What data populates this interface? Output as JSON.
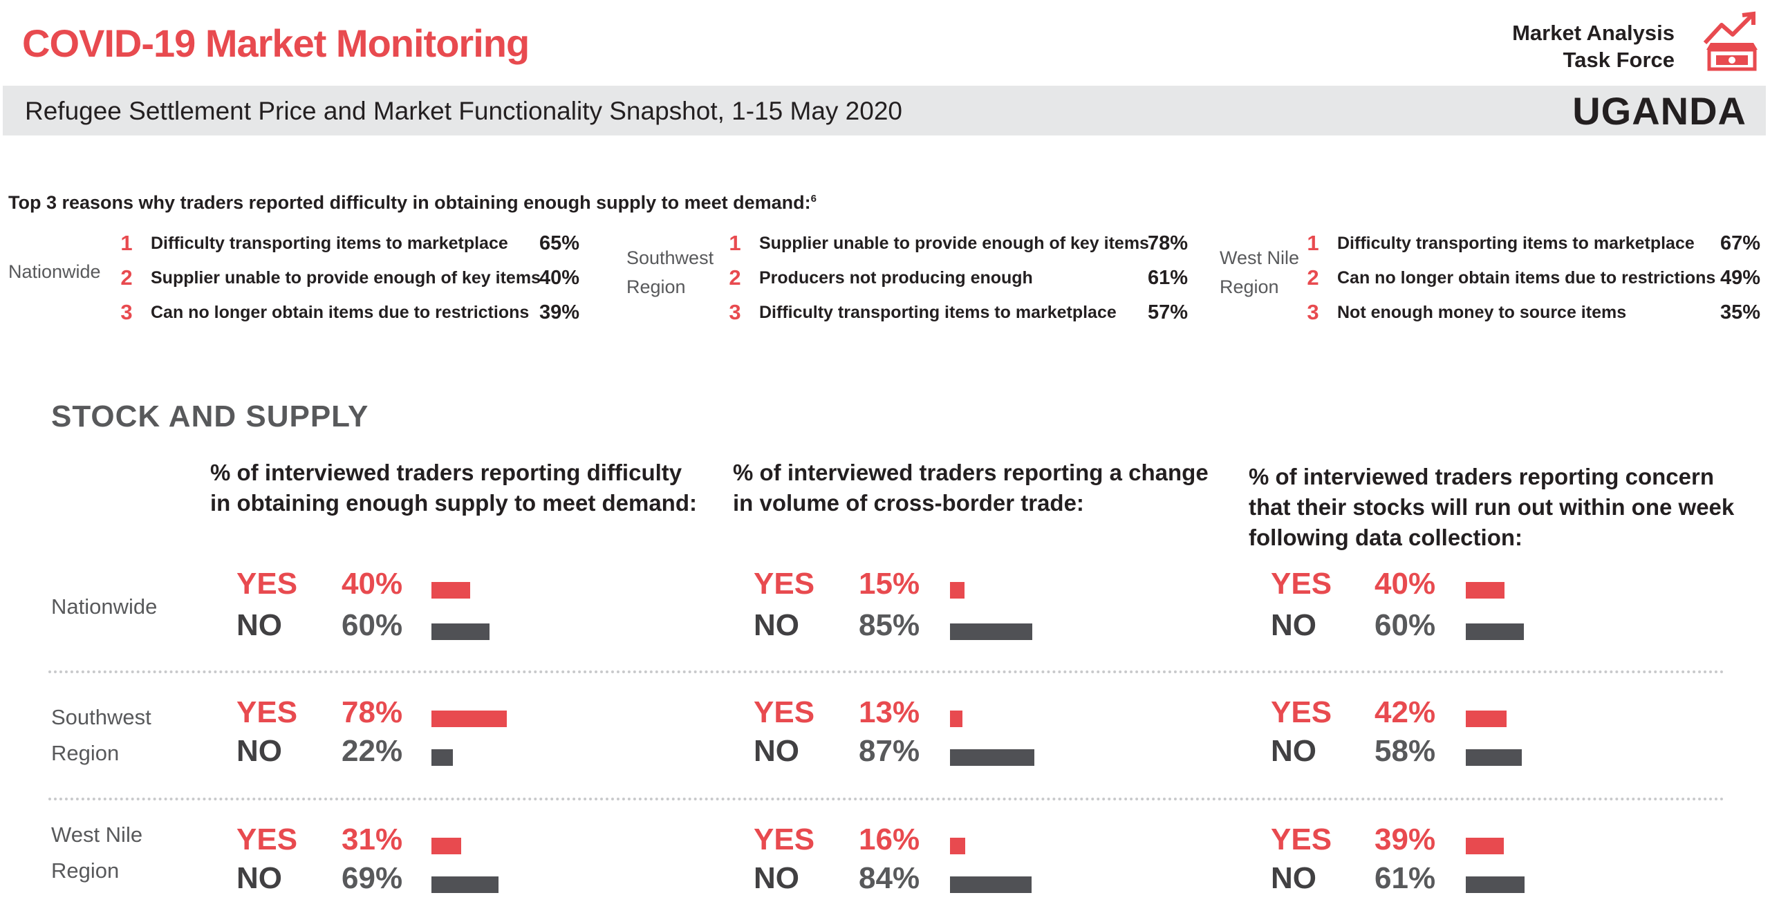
{
  "header": {
    "title": "COVID-19 Market Monitoring",
    "org_line1": "Market Analysis",
    "org_line2": "Task Force",
    "subtitle": "Refugee Settlement Price and Market Functionality Snapshot, 1-15 May 2020",
    "country": "UGANDA",
    "logo_icon": "rising-chart-market-icon"
  },
  "colors": {
    "accent": "#e84a4f",
    "no_bar": "#505155",
    "band": "#e6e7e8",
    "text": "#231f20",
    "muted": "#58595b"
  },
  "reasons": {
    "heading": "Top 3 reasons why traders reported difficulty in obtaining enough supply to meet demand:",
    "footnote": "6",
    "groups": [
      {
        "region": [
          "Nationwide"
        ],
        "items": [
          {
            "rank": "1",
            "text": "Difficulty transporting items to marketplace",
            "pct": "65%"
          },
          {
            "rank": "2",
            "text": "Supplier unable to provide enough of key items",
            "pct": "40%"
          },
          {
            "rank": "3",
            "text": "Can no longer obtain items due to restrictions",
            "pct": "39%"
          }
        ]
      },
      {
        "region": [
          "Southwest",
          "Region"
        ],
        "items": [
          {
            "rank": "1",
            "text": "Supplier unable to provide enough of key items",
            "pct": "78%"
          },
          {
            "rank": "2",
            "text": "Producers not producing enough",
            "pct": "61%"
          },
          {
            "rank": "3",
            "text": "Difficulty transporting items to marketplace",
            "pct": "57%"
          }
        ]
      },
      {
        "region": [
          "West Nile",
          "Region"
        ],
        "items": [
          {
            "rank": "1",
            "text": "Difficulty transporting items to marketplace",
            "pct": "67%"
          },
          {
            "rank": "2",
            "text": "Can no longer obtain items due to restrictions",
            "pct": "49%"
          },
          {
            "rank": "3",
            "text": "Not enough money to source items",
            "pct": "35%"
          }
        ]
      }
    ]
  },
  "stock": {
    "title": "STOCK AND SUPPLY",
    "yes_label": "YES",
    "no_label": "NO",
    "questions": [
      [
        "% of interviewed traders reporting difficulty",
        "in obtaining enough supply to meet demand:"
      ],
      [
        "% of interviewed traders reporting a change",
        "in volume of cross-border trade:"
      ],
      [
        "% of interviewed traders reporting concern",
        "that their stocks will run out within one week",
        "following data collection:"
      ]
    ],
    "rows": [
      {
        "label": [
          "Nationwide"
        ]
      },
      {
        "label": [
          "Southwest",
          "Region"
        ]
      },
      {
        "label": [
          "West Nile",
          "Region"
        ]
      }
    ]
  },
  "chart_data": {
    "type": "bar",
    "categories": [
      "Nationwide",
      "Southwest Region",
      "West Nile Region"
    ],
    "panels": [
      {
        "question": "% of interviewed traders reporting difficulty in obtaining enough supply to meet demand:",
        "series": [
          {
            "name": "YES",
            "values": [
              40,
              78,
              31
            ]
          },
          {
            "name": "NO",
            "values": [
              60,
              22,
              69
            ]
          }
        ]
      },
      {
        "question": "% of interviewed traders reporting a change in volume of cross-border trade:",
        "series": [
          {
            "name": "YES",
            "values": [
              15,
              13,
              16
            ]
          },
          {
            "name": "NO",
            "values": [
              85,
              87,
              84
            ]
          }
        ]
      },
      {
        "question": "% of interviewed traders reporting concern that their stocks will run out within one week following data collection:",
        "series": [
          {
            "name": "YES",
            "values": [
              40,
              42,
              39
            ]
          },
          {
            "name": "NO",
            "values": [
              60,
              58,
              61
            ]
          }
        ]
      }
    ],
    "unit": "%"
  }
}
